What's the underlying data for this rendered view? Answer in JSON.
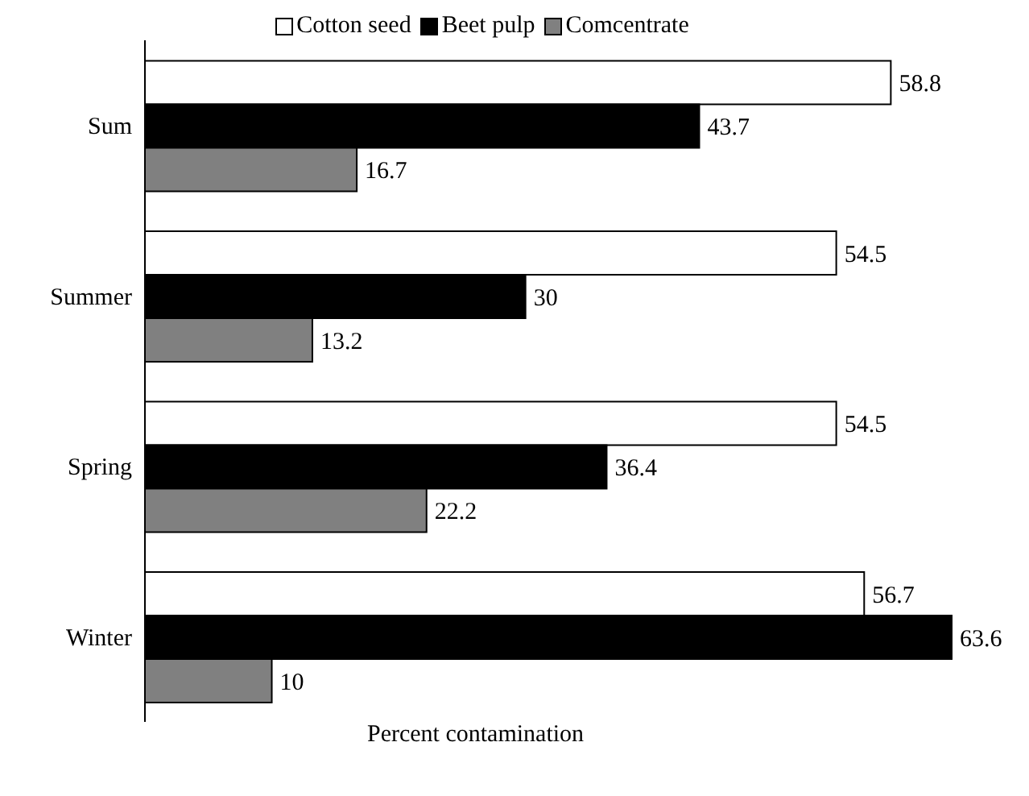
{
  "chart_data": {
    "type": "bar",
    "orientation": "horizontal",
    "categories": [
      "Sum",
      "Summer",
      "Spring",
      "Winter"
    ],
    "series": [
      {
        "name": "Cotton seed",
        "color": "#ffffff",
        "values": [
          58.8,
          54.5,
          54.5,
          56.7
        ]
      },
      {
        "name": "Beet pulp",
        "color": "#000000",
        "values": [
          43.7,
          30,
          36.4,
          63.6
        ]
      },
      {
        "name": "Comcentrate",
        "color": "#808080",
        "values": [
          16.7,
          13.2,
          22.2,
          10
        ]
      }
    ],
    "data_labels": true,
    "legend": "top",
    "xlabel": "Percent contamination"
  }
}
